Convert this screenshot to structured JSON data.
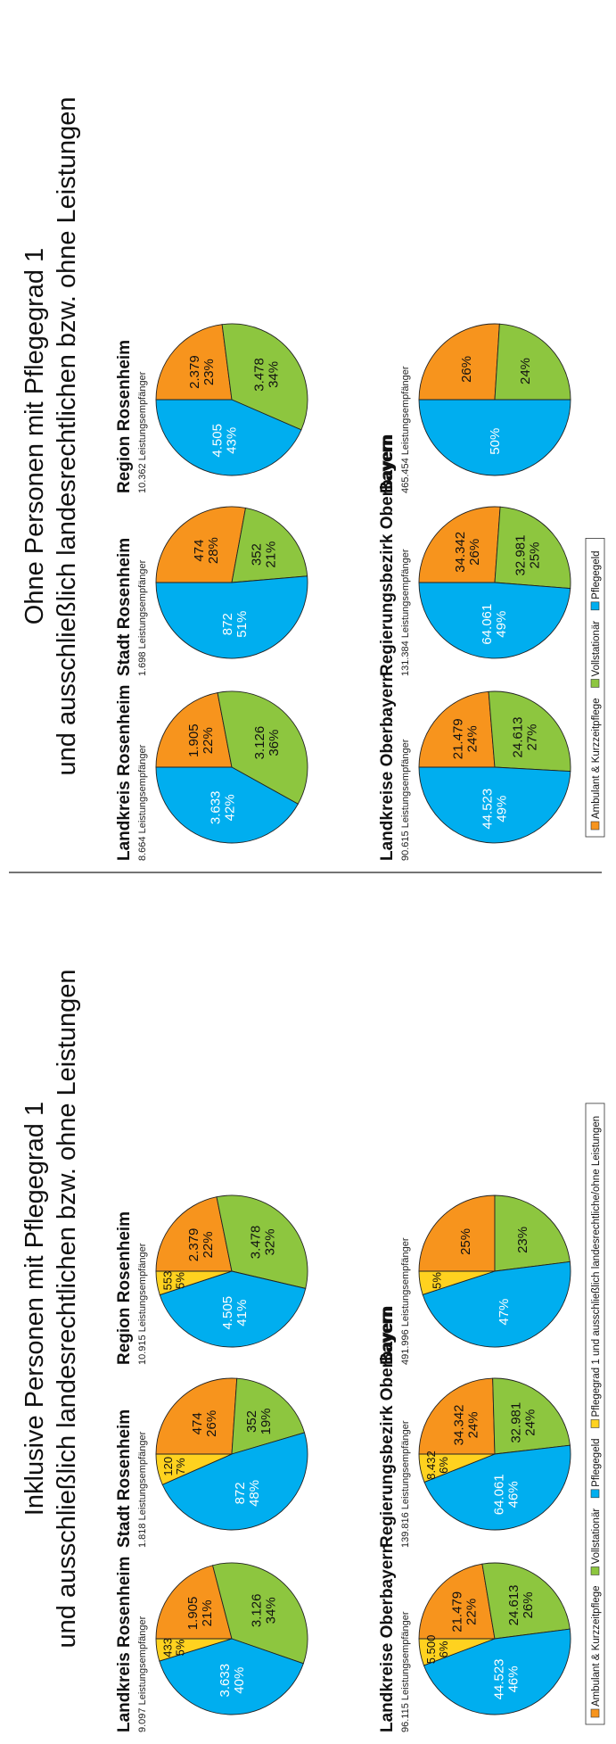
{
  "colors": {
    "ambulant": "#F7941D",
    "vollstationaer": "#8DC63F",
    "pflegegeld": "#00AEEF",
    "pg1": "#FFD21F",
    "stroke": "#222222"
  },
  "chart_data": [
    {
      "type": "pie",
      "title": "Inklusive Personen mit Pflegegrad 1 und ausschließlich landesrechtlichen bzw. ohne Leistungen",
      "legend": {
        "placement": "bottom",
        "entries": [
          "Ambulant & Kurzzeitpflege",
          "Vollstationär",
          "Pflegegeld",
          "Pflegegrad 1 und ausschließlich landesrechtliche/ohne Leistungen"
        ]
      },
      "charts": [
        {
          "name": "Landkreis Rosenheim",
          "subtitle": "9.097 Leistungsempfänger",
          "slices": [
            {
              "category": "Ambulant & Kurzzeitpflege",
              "value": 1905,
              "value_label": "1.905",
              "percent_label": "21%"
            },
            {
              "category": "Vollstationär",
              "value": 3126,
              "value_label": "3.126",
              "percent_label": "34%"
            },
            {
              "category": "Pflegegeld",
              "value": 3633,
              "value_label": "3.633",
              "percent_label": "40%"
            },
            {
              "category": "Pflegegrad 1",
              "value": 433,
              "value_label": "433",
              "percent_label": "5%"
            }
          ]
        },
        {
          "name": "Stadt Rosenheim",
          "subtitle": "1.818 Leistungsempfänger",
          "slices": [
            {
              "category": "Ambulant & Kurzzeitpflege",
              "value": 474,
              "value_label": "474",
              "percent_label": "26%"
            },
            {
              "category": "Vollstationär",
              "value": 352,
              "value_label": "352",
              "percent_label": "19%"
            },
            {
              "category": "Pflegegeld",
              "value": 872,
              "value_label": "872",
              "percent_label": "48%"
            },
            {
              "category": "Pflegegrad 1",
              "value": 120,
              "value_label": "120",
              "percent_label": "7%"
            }
          ]
        },
        {
          "name": "Region Rosenheim",
          "subtitle": "10.915 Leistungsempfänger",
          "slices": [
            {
              "category": "Ambulant & Kurzzeitpflege",
              "value": 2379,
              "value_label": "2.379",
              "percent_label": "22%"
            },
            {
              "category": "Vollstationär",
              "value": 3478,
              "value_label": "3.478",
              "percent_label": "32%"
            },
            {
              "category": "Pflegegeld",
              "value": 4505,
              "value_label": "4.505",
              "percent_label": "41%"
            },
            {
              "category": "Pflegegrad 1",
              "value": 553,
              "value_label": "553",
              "percent_label": "5%"
            }
          ]
        },
        {
          "name": "Landkreise Oberbayern",
          "subtitle": "96.115 Leistungsempfänger",
          "slices": [
            {
              "category": "Ambulant & Kurzzeitpflege",
              "value": 21479,
              "value_label": "21.479",
              "percent_label": "22%"
            },
            {
              "category": "Vollstationär",
              "value": 24613,
              "value_label": "24.613",
              "percent_label": "26%"
            },
            {
              "category": "Pflegegeld",
              "value": 44523,
              "value_label": "44.523",
              "percent_label": "46%"
            },
            {
              "category": "Pflegegrad 1",
              "value": 5500,
              "value_label": "5.500",
              "percent_label": "6%"
            }
          ]
        },
        {
          "name": "Regierungsbezirk Oberbayern",
          "subtitle": "139.816 Leistungsempfänger",
          "slices": [
            {
              "category": "Ambulant & Kurzzeitpflege",
              "value": 34342,
              "value_label": "34.342",
              "percent_label": "24%"
            },
            {
              "category": "Vollstationär",
              "value": 32981,
              "value_label": "32.981",
              "percent_label": "24%"
            },
            {
              "category": "Pflegegeld",
              "value": 64061,
              "value_label": "64.061",
              "percent_label": "46%"
            },
            {
              "category": "Pflegegrad 1",
              "value": 8432,
              "value_label": "8.432",
              "percent_label": "6%"
            }
          ]
        },
        {
          "name": "Bayern",
          "subtitle": "491.996 Leistungsempfänger",
          "slices": [
            {
              "category": "Ambulant & Kurzzeitpflege",
              "value": 25,
              "value_label": "",
              "percent_label": "25%"
            },
            {
              "category": "Vollstationär",
              "value": 23,
              "value_label": "",
              "percent_label": "23%"
            },
            {
              "category": "Pflegegeld",
              "value": 47,
              "value_label": "",
              "percent_label": "47%"
            },
            {
              "category": "Pflegegrad 1",
              "value": 5,
              "value_label": "",
              "percent_label": "5%"
            }
          ]
        }
      ]
    },
    {
      "type": "pie",
      "title": "Ohne Personen mit Pflegegrad 1 und ausschließlich landesrechtlichen bzw. ohne Leistungen",
      "legend": {
        "placement": "bottom",
        "entries": [
          "Ambulant & Kurzzeitpflege",
          "Vollstationär",
          "Pflegegeld"
        ]
      },
      "charts": [
        {
          "name": "Landkreis Rosenheim",
          "subtitle": "8.664 Leistungsempfänger",
          "slices": [
            {
              "category": "Ambulant & Kurzzeitpflege",
              "value": 1905,
              "value_label": "1.905",
              "percent_label": "22%"
            },
            {
              "category": "Vollstationär",
              "value": 3126,
              "value_label": "3.126",
              "percent_label": "36%"
            },
            {
              "category": "Pflegegeld",
              "value": 3633,
              "value_label": "3.633",
              "percent_label": "42%"
            }
          ]
        },
        {
          "name": "Stadt Rosenheim",
          "subtitle": "1.698 Leistungsempfänger",
          "slices": [
            {
              "category": "Ambulant & Kurzzeitpflege",
              "value": 474,
              "value_label": "474",
              "percent_label": "28%"
            },
            {
              "category": "Vollstationär",
              "value": 352,
              "value_label": "352",
              "percent_label": "21%"
            },
            {
              "category": "Pflegegeld",
              "value": 872,
              "value_label": "872",
              "percent_label": "51%"
            }
          ]
        },
        {
          "name": "Region Rosenheim",
          "subtitle": "10.362 Leistungsempfänger",
          "slices": [
            {
              "category": "Ambulant & Kurzzeitpflege",
              "value": 2379,
              "value_label": "2.379",
              "percent_label": "23%"
            },
            {
              "category": "Vollstationär",
              "value": 3478,
              "value_label": "3.478",
              "percent_label": "34%"
            },
            {
              "category": "Pflegegeld",
              "value": 4505,
              "value_label": "4.505",
              "percent_label": "43%"
            }
          ]
        },
        {
          "name": "Landkreise Oberbayern",
          "subtitle": "90.615 Leistungsempfänger",
          "slices": [
            {
              "category": "Ambulant & Kurzzeitpflege",
              "value": 21479,
              "value_label": "21.479",
              "percent_label": "24%"
            },
            {
              "category": "Vollstationär",
              "value": 24613,
              "value_label": "24.613",
              "percent_label": "27%"
            },
            {
              "category": "Pflegegeld",
              "value": 44523,
              "value_label": "44.523",
              "percent_label": "49%"
            }
          ]
        },
        {
          "name": "Regierungsbezirk Oberbayern",
          "subtitle": "131.384 Leistungsempfänger",
          "slices": [
            {
              "category": "Ambulant & Kurzzeitpflege",
              "value": 34342,
              "value_label": "34.342",
              "percent_label": "26%"
            },
            {
              "category": "Vollstationär",
              "value": 32981,
              "value_label": "32.981",
              "percent_label": "25%"
            },
            {
              "category": "Pflegegeld",
              "value": 64061,
              "value_label": "64.061",
              "percent_label": "49%"
            }
          ]
        },
        {
          "name": "Bayern",
          "subtitle": "465.454 Leistungsempfänger",
          "slices": [
            {
              "category": "Ambulant & Kurzzeitpflege",
              "value": 26,
              "value_label": "",
              "percent_label": "26%"
            },
            {
              "category": "Vollstationär",
              "value": 24,
              "value_label": "",
              "percent_label": "24%"
            },
            {
              "category": "Pflegegeld",
              "value": 50,
              "value_label": "",
              "percent_label": "50%"
            }
          ]
        }
      ]
    }
  ]
}
